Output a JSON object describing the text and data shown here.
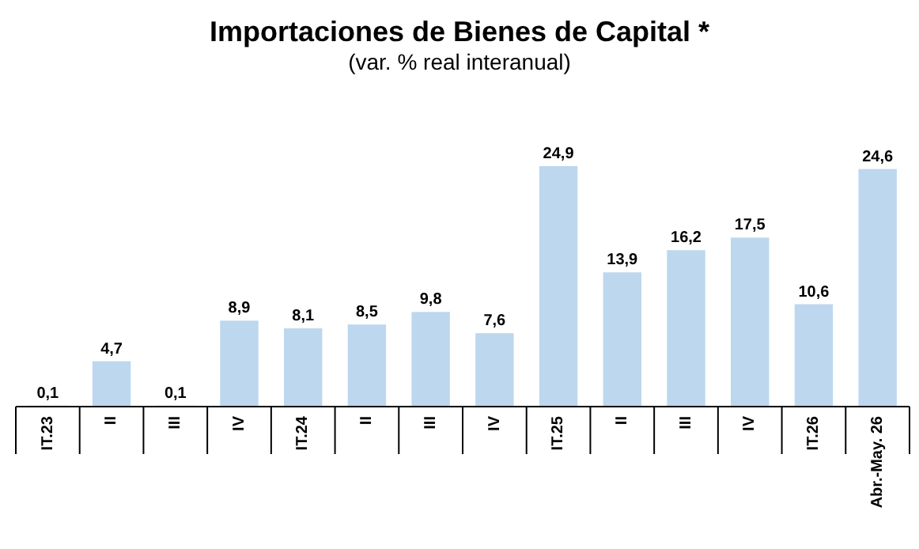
{
  "chart_data": {
    "type": "bar",
    "title": "Importaciones de Bienes de Capital *",
    "subtitle": "(var. % real interanual)",
    "categories": [
      "IT.23",
      "II",
      "III",
      "IV",
      "IT.24",
      "II",
      "III",
      "IV",
      "IT.25",
      "II",
      "III",
      "IV",
      "IT.26",
      "Abr.-May. 26"
    ],
    "values": [
      0.1,
      4.7,
      0.1,
      8.9,
      8.1,
      8.5,
      9.8,
      7.6,
      24.9,
      13.9,
      16.2,
      17.5,
      10.6,
      24.6
    ],
    "value_labels": [
      "0,1",
      "4,7",
      "0,1",
      "8,9",
      "8,1",
      "8,5",
      "9,8",
      "7,6",
      "24,9",
      "13,9",
      "16,2",
      "17,5",
      "10,6",
      "24,6"
    ],
    "color": "#bdd7ee"
  }
}
